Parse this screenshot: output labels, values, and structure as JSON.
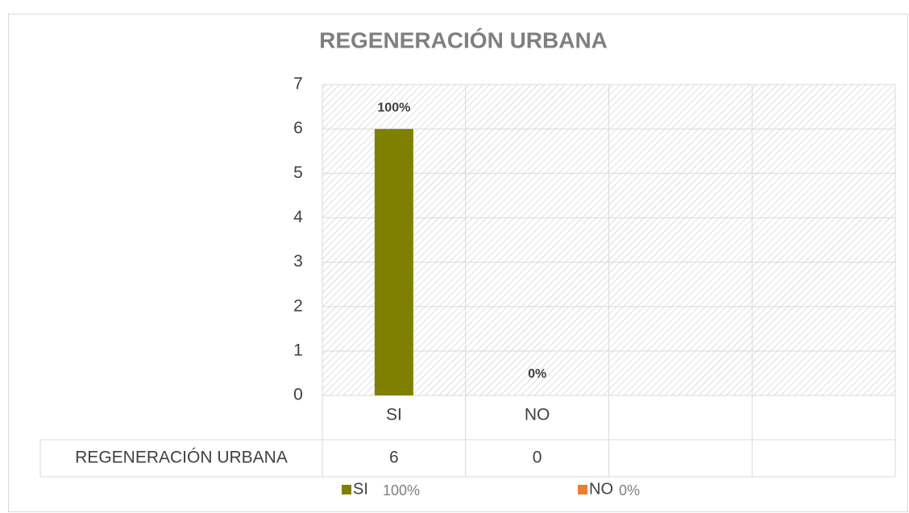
{
  "chart_data": {
    "type": "bar",
    "title": "REGENERACIÓN URBANA",
    "categories": [
      "SI",
      "NO",
      null,
      null
    ],
    "series": [
      {
        "name": "REGENERACIÓN URBANA",
        "color": "#808000",
        "values": [
          6,
          0,
          null,
          null
        ]
      }
    ],
    "data_labels": [
      "100%",
      "0%",
      null,
      null
    ],
    "ylim": [
      0,
      7
    ],
    "yticks": [
      0,
      1,
      2,
      3,
      4,
      5,
      6,
      7
    ],
    "grid": true,
    "legend": [
      {
        "name": "SI",
        "color": "#808000",
        "label": "100%"
      },
      {
        "name": "NO",
        "color": "#ed7d31",
        "label": "0%"
      }
    ],
    "legend_position": "bottom"
  }
}
